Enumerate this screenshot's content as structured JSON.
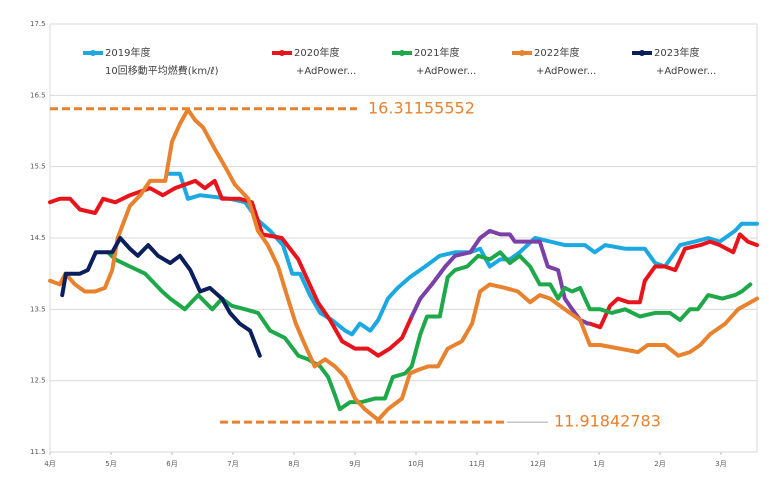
{
  "chart_data": {
    "type": "line",
    "xlim": [
      0,
      11.59
    ],
    "ylim": [
      11.5,
      17.5
    ],
    "yticks": [
      11.5,
      12.5,
      13.5,
      14.5,
      15.5,
      16.5,
      17.5
    ],
    "xticks": [
      {
        "value": 0,
        "label": "4月"
      },
      {
        "value": 1,
        "label": "5月"
      },
      {
        "value": 2,
        "label": "6月"
      },
      {
        "value": 3,
        "label": "7月"
      },
      {
        "value": 4,
        "label": "8月"
      },
      {
        "value": 5,
        "label": "9月"
      },
      {
        "value": 6,
        "label": "10月"
      },
      {
        "value": 7,
        "label": "11月"
      },
      {
        "value": 8,
        "label": "12月"
      },
      {
        "value": 9,
        "label": "1月"
      },
      {
        "value": 10,
        "label": "2月"
      },
      {
        "value": 11,
        "label": "3月"
      }
    ],
    "grid": true,
    "subtitle": "10回移動平均燃費(km/ℓ)",
    "annotations": [
      {
        "value": 16.31155552,
        "color": "#e8822e"
      },
      {
        "value": 11.91842783,
        "color": "#e8822e"
      }
    ],
    "series": [
      {
        "name": "2019年度",
        "color": "#1ca8e0",
        "x": [
          1.93,
          2.13,
          2.26,
          2.46,
          2.95,
          3.2,
          3.41,
          3.61,
          3.82,
          3.97,
          4.1,
          4.26,
          4.43,
          4.62,
          4.84,
          4.95,
          5.08,
          5.25,
          5.38,
          5.54,
          5.7,
          5.9,
          6.15,
          6.39,
          6.64,
          6.89,
          7.05,
          7.21,
          7.38,
          7.54,
          7.7,
          7.95,
          8.2,
          8.44,
          8.77,
          8.93,
          9.1,
          9.43,
          9.75,
          9.92,
          10.08,
          10.33,
          10.57,
          10.79,
          10.98,
          11.23,
          11.34,
          11.59
        ],
        "values": [
          15.4,
          15.4,
          15.05,
          15.1,
          15.05,
          15.0,
          14.75,
          14.6,
          14.4,
          14.0,
          14.0,
          13.7,
          13.45,
          13.35,
          13.2,
          13.15,
          13.3,
          13.2,
          13.35,
          13.65,
          13.8,
          13.95,
          14.1,
          14.25,
          14.3,
          14.3,
          14.35,
          14.1,
          14.2,
          14.2,
          14.3,
          14.5,
          14.45,
          14.4,
          14.4,
          14.3,
          14.4,
          14.35,
          14.35,
          14.15,
          14.1,
          14.4,
          14.45,
          14.5,
          14.45,
          14.6,
          14.7,
          14.7
        ]
      },
      {
        "name": "2020年度",
        "note": "+AdPower...",
        "color": "#e8141c",
        "x": [
          0,
          0.16,
          0.33,
          0.49,
          0.74,
          0.87,
          1.07,
          1.31,
          1.64,
          1.85,
          2.05,
          2.38,
          2.54,
          2.7,
          2.82,
          3.11,
          3.31,
          3.48,
          3.8,
          4.07,
          4.23,
          4.39,
          4.59,
          4.79,
          5.0,
          5.21,
          5.38,
          5.57,
          5.77,
          5.93,
          null,
          8.85,
          9.02,
          9.18,
          9.31,
          9.48,
          9.67,
          9.75,
          9.92,
          10.08,
          10.25,
          10.41,
          10.66,
          10.82,
          10.98,
          11.2,
          11.31,
          11.44,
          11.59
        ],
        "values": [
          15.0,
          15.05,
          15.05,
          14.9,
          14.85,
          15.05,
          15.0,
          15.1,
          15.2,
          15.1,
          15.2,
          15.3,
          15.2,
          15.3,
          15.05,
          15.05,
          15.0,
          14.55,
          14.5,
          14.2,
          13.9,
          13.6,
          13.35,
          13.05,
          12.95,
          12.95,
          12.85,
          12.95,
          13.1,
          13.4,
          null,
          13.3,
          13.25,
          13.55,
          13.65,
          13.6,
          13.6,
          13.9,
          14.1,
          14.1,
          14.05,
          14.35,
          14.4,
          14.45,
          14.4,
          14.3,
          14.55,
          14.45,
          14.4
        ]
      },
      {
        "color": "#7b3fa8",
        "x": [
          5.93,
          6.07,
          6.26,
          6.48,
          6.64,
          6.89,
          7.05,
          7.21,
          7.38,
          7.54,
          7.62,
          7.79,
          8.03,
          8.16,
          8.33,
          8.44,
          8.56,
          8.69,
          8.82
        ],
        "values": [
          13.4,
          13.65,
          13.85,
          14.1,
          14.25,
          14.3,
          14.5,
          14.6,
          14.55,
          14.55,
          14.45,
          14.45,
          14.45,
          14.1,
          14.05,
          13.65,
          13.5,
          13.35,
          13.3
        ]
      },
      {
        "name": "2021年度",
        "note": "+AdPower...",
        "color": "#1fa84a",
        "x": [
          0.95,
          1.07,
          1.31,
          1.56,
          1.84,
          1.97,
          2.21,
          2.43,
          2.66,
          2.82,
          2.98,
          3.2,
          3.41,
          3.61,
          3.85,
          4.07,
          4.23,
          4.43,
          4.56,
          4.67,
          4.75,
          4.92,
          5.11,
          5.33,
          5.49,
          5.62,
          5.82,
          5.93,
          6.07,
          6.18,
          6.39,
          6.52,
          6.64,
          6.84,
          7.02,
          7.21,
          7.38,
          7.54,
          7.7,
          7.87,
          8.03,
          8.2,
          8.33,
          8.44,
          8.56,
          8.69,
          8.85,
          9.02,
          9.21,
          9.43,
          9.67,
          9.92,
          10.16,
          10.33,
          10.49,
          10.62,
          10.79,
          11.02,
          11.23,
          11.34,
          11.48
        ],
        "values": [
          14.3,
          14.2,
          14.1,
          14.0,
          13.75,
          13.65,
          13.5,
          13.7,
          13.5,
          13.65,
          13.55,
          13.5,
          13.45,
          13.2,
          13.1,
          12.85,
          12.8,
          12.7,
          12.55,
          12.3,
          12.1,
          12.2,
          12.2,
          12.25,
          12.25,
          12.55,
          12.6,
          12.7,
          13.15,
          13.4,
          13.4,
          13.95,
          14.05,
          14.1,
          14.25,
          14.2,
          14.3,
          14.15,
          14.25,
          14.1,
          13.85,
          13.85,
          13.65,
          13.8,
          13.75,
          13.8,
          13.5,
          13.5,
          13.45,
          13.5,
          13.4,
          13.45,
          13.45,
          13.35,
          13.5,
          13.5,
          13.7,
          13.65,
          13.7,
          13.75,
          13.85
        ]
      },
      {
        "name": "2022年度",
        "note": "+AdPower...",
        "color": "#e8822e",
        "x": [
          0,
          0.16,
          0.25,
          0.41,
          0.57,
          0.74,
          0.9,
          1.02,
          1.11,
          1.31,
          1.48,
          1.64,
          1.89,
          2.0,
          2.13,
          2.26,
          2.38,
          2.51,
          2.7,
          2.87,
          3.03,
          3.25,
          3.41,
          3.57,
          3.74,
          3.9,
          4.03,
          4.18,
          4.34,
          4.51,
          4.67,
          4.84,
          5.0,
          5.16,
          5.38,
          5.54,
          5.77,
          5.9,
          6.03,
          6.2,
          6.36,
          6.52,
          6.75,
          6.92,
          7.05,
          7.21,
          7.46,
          7.67,
          7.87,
          8.03,
          8.2,
          8.44,
          8.69,
          8.85,
          9.02,
          9.34,
          9.64,
          9.8,
          10.08,
          10.3,
          10.49,
          10.66,
          10.82,
          11.07,
          11.28,
          11.59
        ],
        "values": [
          13.9,
          13.85,
          14.0,
          13.85,
          13.75,
          13.75,
          13.8,
          14.05,
          14.5,
          14.95,
          15.1,
          15.3,
          15.3,
          15.85,
          16.1,
          16.3,
          16.15,
          16.05,
          15.75,
          15.5,
          15.25,
          15.05,
          14.6,
          14.4,
          14.1,
          13.65,
          13.3,
          13.0,
          12.7,
          12.8,
          12.7,
          12.55,
          12.25,
          12.1,
          11.95,
          12.1,
          12.25,
          12.6,
          12.65,
          12.7,
          12.7,
          12.95,
          13.05,
          13.3,
          13.75,
          13.85,
          13.8,
          13.75,
          13.6,
          13.7,
          13.65,
          13.5,
          13.35,
          13.0,
          13.0,
          12.95,
          12.9,
          13.0,
          13.0,
          12.85,
          12.9,
          13.0,
          13.15,
          13.3,
          13.5,
          13.65
        ]
      },
      {
        "name": "2023年度",
        "note": "+AdPower...",
        "color": "#0a1f5c",
        "x": [
          0.2,
          0.26,
          0.49,
          0.62,
          0.75,
          1.02,
          1.15,
          1.31,
          1.44,
          1.61,
          1.77,
          1.97,
          2.13,
          2.3,
          2.46,
          2.62,
          2.82,
          2.95,
          3.11,
          3.28,
          3.44
        ],
        "values": [
          13.7,
          14.0,
          14.0,
          14.05,
          14.3,
          14.3,
          14.5,
          14.35,
          14.25,
          14.4,
          14.25,
          14.15,
          14.25,
          14.05,
          13.75,
          13.8,
          13.65,
          13.45,
          13.3,
          13.2,
          12.85
        ]
      }
    ]
  }
}
